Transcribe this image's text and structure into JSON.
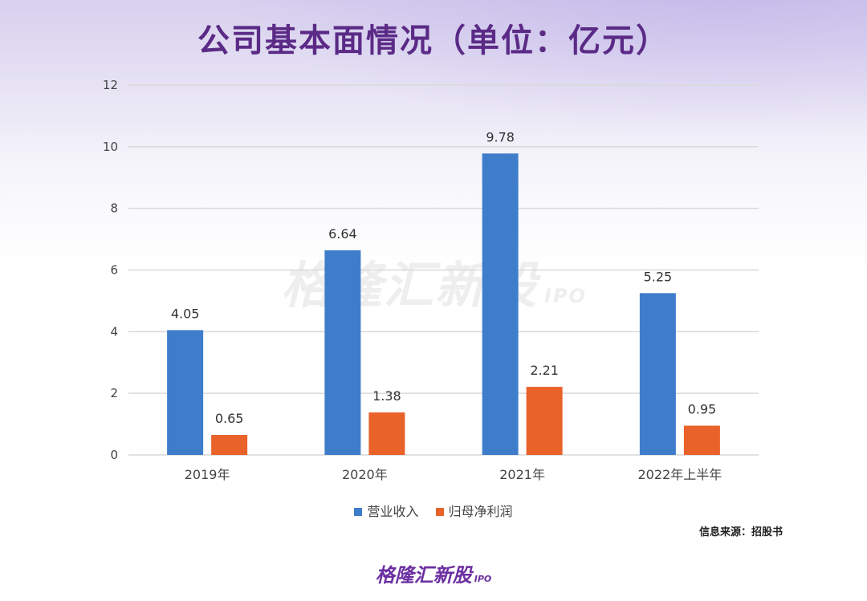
{
  "title": "公司基本面情况（单位：亿元）",
  "watermark": {
    "main": "格隆汇新股",
    "sub": "IPO"
  },
  "source": "信息来源：招股书",
  "brand": {
    "main": "格隆汇新股",
    "sub": "IPO"
  },
  "colors": {
    "title": "#5b2a86",
    "revenue": "#3f7dcb",
    "profit": "#e8622a",
    "grid": "#d9d9d9"
  },
  "chart_data": {
    "type": "bar",
    "categories": [
      "2019年",
      "2020年",
      "2021年",
      "2022年上半年"
    ],
    "series": [
      {
        "name": "营业收入",
        "values": [
          4.05,
          6.64,
          9.78,
          5.25
        ]
      },
      {
        "name": "归母净利润",
        "values": [
          0.65,
          1.38,
          2.21,
          0.95
        ]
      }
    ],
    "data_labels": [
      [
        "4.05",
        "6.64",
        "9.78",
        "5.25"
      ],
      [
        "0.65",
        "1.38",
        "2.21",
        "0.95"
      ]
    ],
    "yticks": [
      "0",
      "2",
      "4",
      "6",
      "8",
      "10",
      "12"
    ],
    "ylim": [
      0,
      12
    ],
    "grid": true,
    "legend_position": "bottom"
  }
}
